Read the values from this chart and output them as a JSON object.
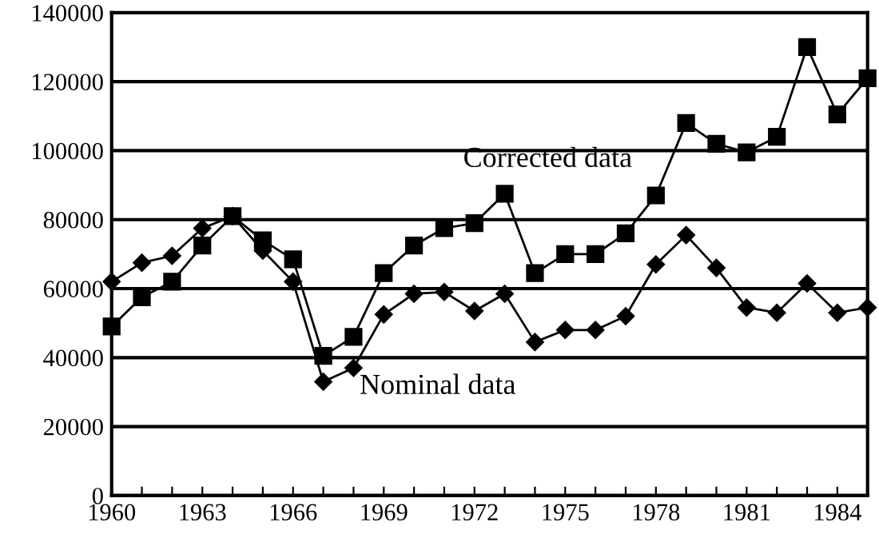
{
  "chart_data": {
    "type": "line",
    "x": [
      1960,
      1961,
      1962,
      1963,
      1964,
      1965,
      1966,
      1967,
      1968,
      1969,
      1970,
      1971,
      1972,
      1973,
      1974,
      1975,
      1976,
      1977,
      1978,
      1979,
      1980,
      1981,
      1982,
      1983,
      1984,
      1985
    ],
    "series": [
      {
        "name": "Corrected data",
        "color": "#000000",
        "marker": "square",
        "values": [
          49000,
          57500,
          62000,
          72500,
          81000,
          74000,
          68500,
          40500,
          46000,
          64500,
          72500,
          77500,
          79000,
          87500,
          64500,
          70000,
          70000,
          76000,
          87000,
          108000,
          102000,
          99500,
          104000,
          130000,
          110500,
          121000
        ]
      },
      {
        "name": "Nominal data",
        "color": "#000000",
        "marker": "diamond",
        "values": [
          62000,
          67500,
          69500,
          77500,
          81000,
          71000,
          62000,
          33000,
          37000,
          52500,
          58500,
          59000,
          53500,
          58500,
          44500,
          48000,
          48000,
          52000,
          67000,
          75500,
          66000,
          54500,
          53000,
          61500,
          53000,
          54500
        ]
      }
    ],
    "xlim": [
      1960,
      1985
    ],
    "xticks": [
      1960,
      {
        "value": 1961,
        "label": null
      },
      {
        "value": 1962,
        "label": null
      },
      1963,
      {
        "value": 1964,
        "label": null
      },
      {
        "value": 1965,
        "label": null
      },
      1966,
      {
        "value": 1967,
        "label": null
      },
      {
        "value": 1968,
        "label": null
      },
      1969,
      {
        "value": 1970,
        "label": null
      },
      {
        "value": 1971,
        "label": null
      },
      1972,
      {
        "value": 1973,
        "label": null
      },
      {
        "value": 1974,
        "label": null
      },
      1975,
      {
        "value": 1976,
        "label": null
      },
      {
        "value": 1977,
        "label": null
      },
      1978,
      {
        "value": 1979,
        "label": null
      },
      {
        "value": 1980,
        "label": null
      },
      1981,
      {
        "value": 1982,
        "label": null
      },
      {
        "value": 1983,
        "label": null
      },
      1984,
      {
        "value": 1985,
        "label": null
      }
    ],
    "ylim": [
      0,
      140000
    ],
    "yticks": [
      0,
      20000,
      40000,
      60000,
      80000,
      100000,
      120000,
      140000
    ],
    "grid": "y",
    "line_style": "solid",
    "legend": false
  }
}
